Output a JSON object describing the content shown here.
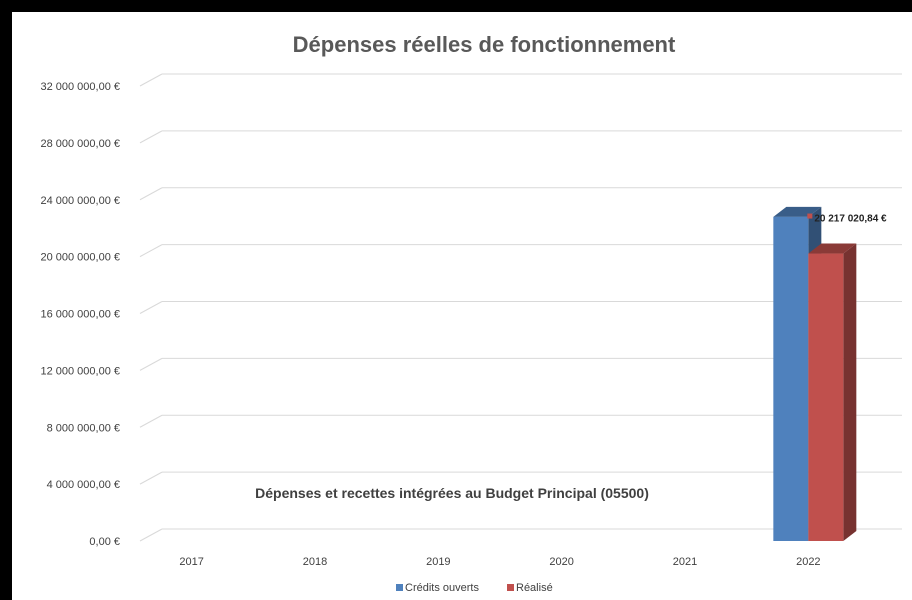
{
  "chart_data": {
    "type": "bar",
    "title": "Dépenses réelles de fonctionnement",
    "annotation": "Dépenses et recettes intégrées au Budget Principal (05500)",
    "categories": [
      "2017",
      "2018",
      "2019",
      "2020",
      "2021",
      "2022"
    ],
    "series": [
      {
        "name": "Crédits ouverts",
        "color": "#4F81BD",
        "values": [
          null,
          null,
          null,
          null,
          null,
          22800000
        ]
      },
      {
        "name": "Réalisé",
        "color": "#C0504D",
        "values": [
          null,
          null,
          null,
          null,
          null,
          20217020.84
        ]
      }
    ],
    "data_labels": [
      {
        "series": 1,
        "category": "2022",
        "text": "20 217 020,84 €"
      }
    ],
    "y_ticks": [
      "0,00 €",
      "4 000 000,00 €",
      "8 000 000,00 €",
      "12 000 000,00 €",
      "16 000 000,00 €",
      "20 000 000,00 €",
      "24 000 000,00 €",
      "28 000 000,00 €",
      "32 000 000,00 €"
    ],
    "ylim": [
      0,
      32000000
    ],
    "grid": true,
    "legend_position": "bottom",
    "style": "3d-clustered-column"
  }
}
